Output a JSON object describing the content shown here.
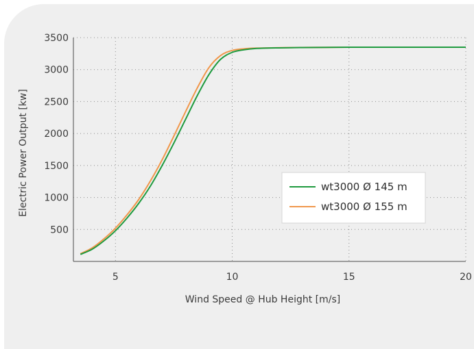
{
  "chart_data": {
    "type": "line",
    "title": "",
    "xlabel": "Wind Speed @ Hub Height [m/s]",
    "ylabel": "Electric Power Output [kw]",
    "xlim": [
      3.2,
      20
    ],
    "ylim": [
      0,
      3500
    ],
    "xticks": [
      5,
      10,
      15,
      20
    ],
    "yticks": [
      500,
      1000,
      1500,
      2000,
      2500,
      3000,
      3500
    ],
    "grid": true,
    "legend_position": "center-right",
    "series": [
      {
        "name": "wt3000 Ø 145 m",
        "color": "#1e9a3e",
        "x": [
          3.5,
          4,
          4.5,
          5,
          5.5,
          6,
          6.5,
          7,
          7.5,
          8,
          8.5,
          9,
          9.5,
          10,
          10.5,
          11,
          12,
          13,
          14,
          15,
          16,
          17,
          18,
          19,
          20
        ],
        "y": [
          110,
          190,
          320,
          480,
          680,
          910,
          1180,
          1500,
          1850,
          2220,
          2590,
          2920,
          3160,
          3270,
          3310,
          3330,
          3340,
          3345,
          3348,
          3350,
          3350,
          3350,
          3350,
          3350,
          3350
        ]
      },
      {
        "name": "wt3000 Ø 155 m",
        "color": "#f0964a",
        "x": [
          3.5,
          4,
          4.5,
          5,
          5.5,
          6,
          6.5,
          7,
          7.5,
          8,
          8.5,
          9,
          9.5,
          10,
          10.5,
          11,
          12,
          13,
          14,
          15,
          16,
          17,
          18,
          19,
          20
        ],
        "y": [
          120,
          210,
          350,
          520,
          730,
          970,
          1260,
          1590,
          1960,
          2340,
          2710,
          3030,
          3220,
          3300,
          3325,
          3335,
          3342,
          3346,
          3348,
          3350,
          3350,
          3350,
          3350,
          3350,
          3350
        ]
      }
    ]
  }
}
